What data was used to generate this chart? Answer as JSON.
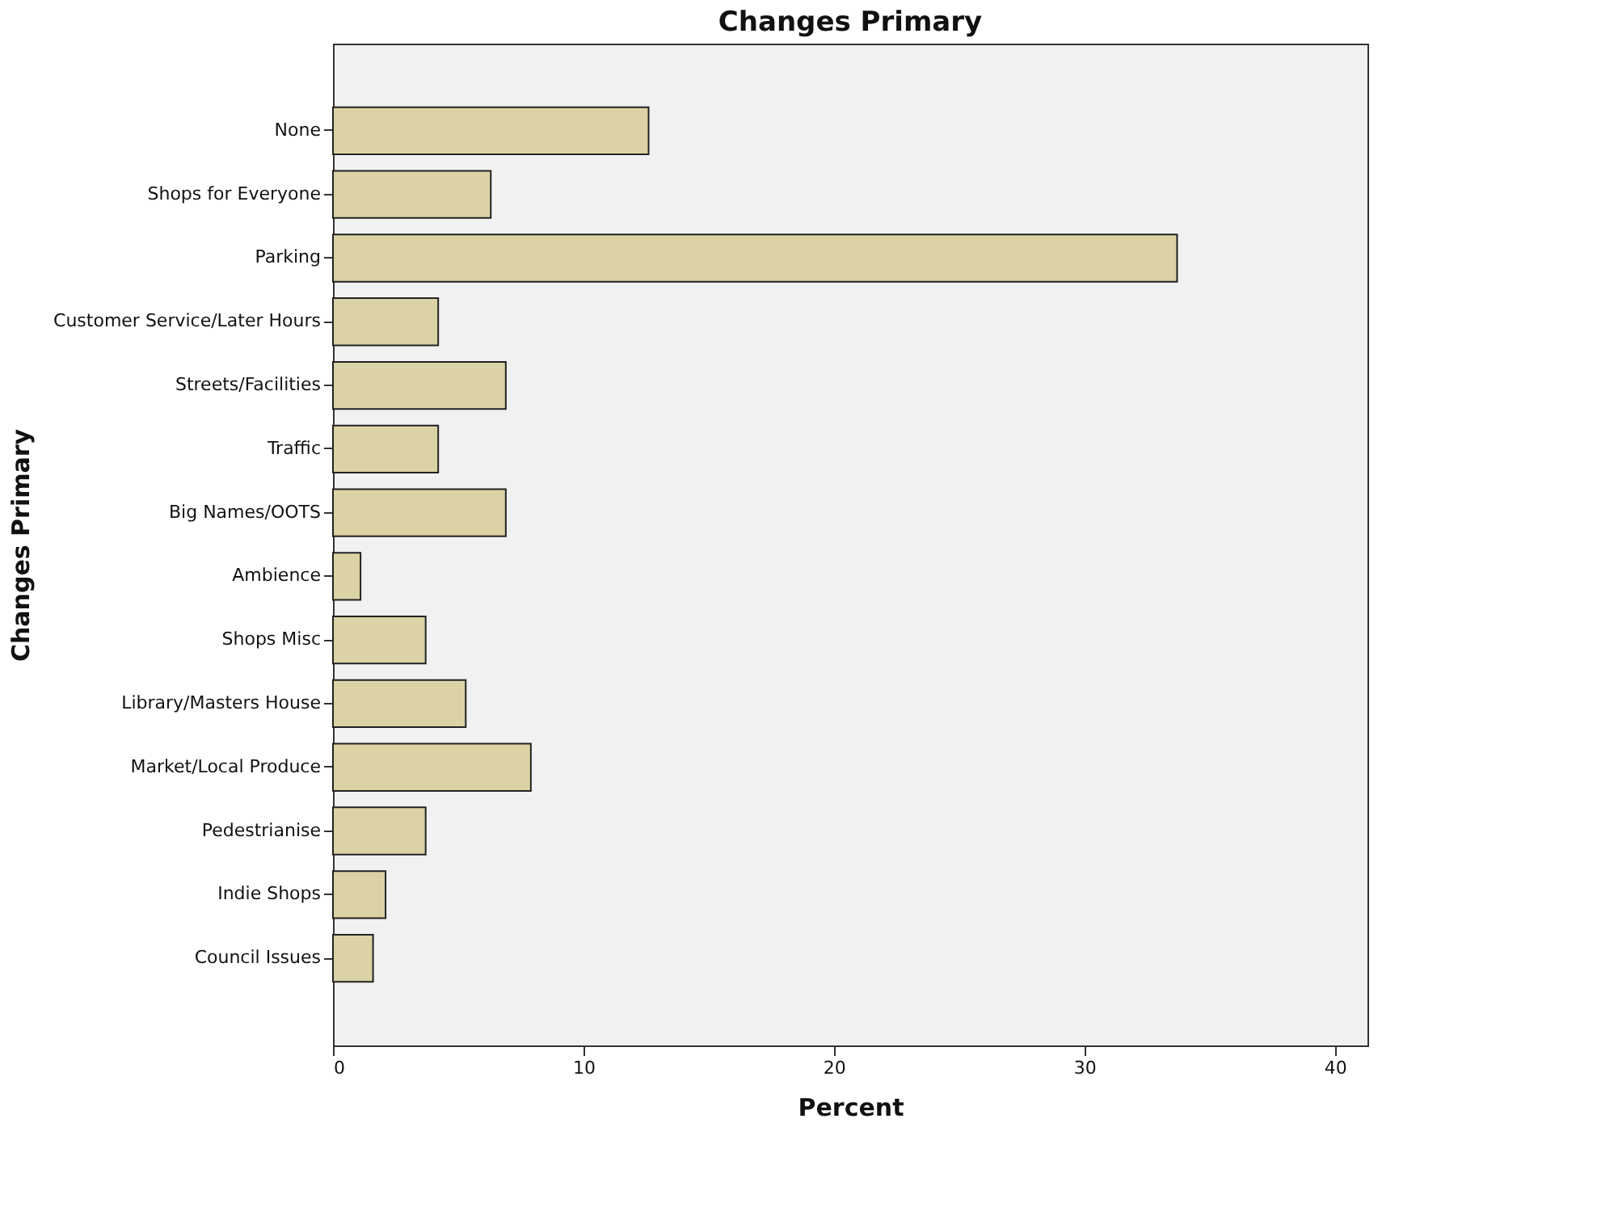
{
  "chart_data": {
    "type": "bar",
    "orientation": "horizontal",
    "title": "Changes Primary",
    "xlabel": "Percent",
    "ylabel": "Changes Primary",
    "categories": [
      "None",
      "Shops for Everyone",
      "Parking",
      "Customer Service/Later Hours",
      "Streets/Facilities",
      "Traffic",
      "Big Names/OOTS",
      "Ambience",
      "Shops Misc",
      "Library/Masters House",
      "Market/Local Produce",
      "Pedestrianise",
      "Indie Shops",
      "Council Issues"
    ],
    "values": [
      12.6,
      6.3,
      33.7,
      4.2,
      6.9,
      4.2,
      6.9,
      1.1,
      3.7,
      5.3,
      7.9,
      3.7,
      2.1,
      1.6
    ],
    "color": "#dbd3a5",
    "xlim": [
      0,
      41.3
    ],
    "xticks": [
      0,
      10,
      20,
      30,
      40
    ],
    "grid": false
  }
}
